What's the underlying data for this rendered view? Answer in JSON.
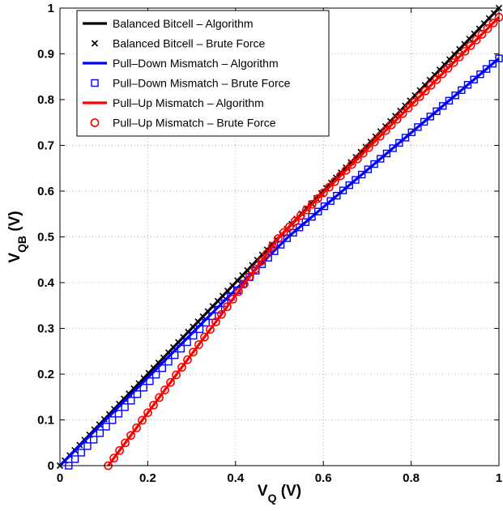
{
  "chart_data": {
    "type": "line",
    "xlabel": {
      "main": "V",
      "sub": "Q",
      "unit": " (V)"
    },
    "ylabel": {
      "main": "V",
      "sub": "QB",
      "unit": " (V)"
    },
    "xlim": [
      0,
      1
    ],
    "ylim": [
      0,
      1
    ],
    "x_ticks": [
      "0",
      "0.2",
      "0.4",
      "0.6",
      "0.8",
      "1"
    ],
    "y_ticks": [
      "0",
      "0.1",
      "0.2",
      "0.3",
      "0.4",
      "0.5",
      "0.6",
      "0.7",
      "0.8",
      "0.9",
      "1"
    ],
    "grid": true,
    "legend_position": "top-left",
    "series": [
      {
        "name": "Balanced Bitcell – Algorithm",
        "style": "line",
        "marker": "none",
        "color": "#000000",
        "x": [
          0,
          1
        ],
        "y": [
          0,
          1
        ]
      },
      {
        "name": "Balanced Bitcell – Brute Force",
        "style": "markers",
        "marker": "x",
        "color": "#000000",
        "x": [
          0,
          1
        ],
        "y": [
          0,
          1
        ],
        "count": 90
      },
      {
        "name": "Pull–Down Mismatch – Algorithm",
        "style": "line",
        "marker": "none",
        "color": "#0000ff",
        "x": [
          0,
          0.52,
          1
        ],
        "y": [
          0,
          0.5,
          0.89
        ]
      },
      {
        "name": "Pull–Down Mismatch – Brute Force",
        "style": "markers",
        "marker": "square",
        "color": "#0000ff",
        "x": [
          0.02,
          0.52,
          1
        ],
        "y": [
          0,
          0.5,
          0.89
        ],
        "count": 70
      },
      {
        "name": "Pull–Up Mismatch – Algorithm",
        "style": "line",
        "marker": "none",
        "color": "#ff0000",
        "x": [
          0.11,
          0.5,
          1
        ],
        "y": [
          0,
          0.5,
          0.98
        ]
      },
      {
        "name": "Pull–Up Mismatch – Brute Force",
        "style": "markers",
        "marker": "circle",
        "color": "#ff0000",
        "x": [
          0.11,
          0.5,
          1
        ],
        "y": [
          0,
          0.5,
          0.98
        ],
        "count": 70
      }
    ]
  }
}
